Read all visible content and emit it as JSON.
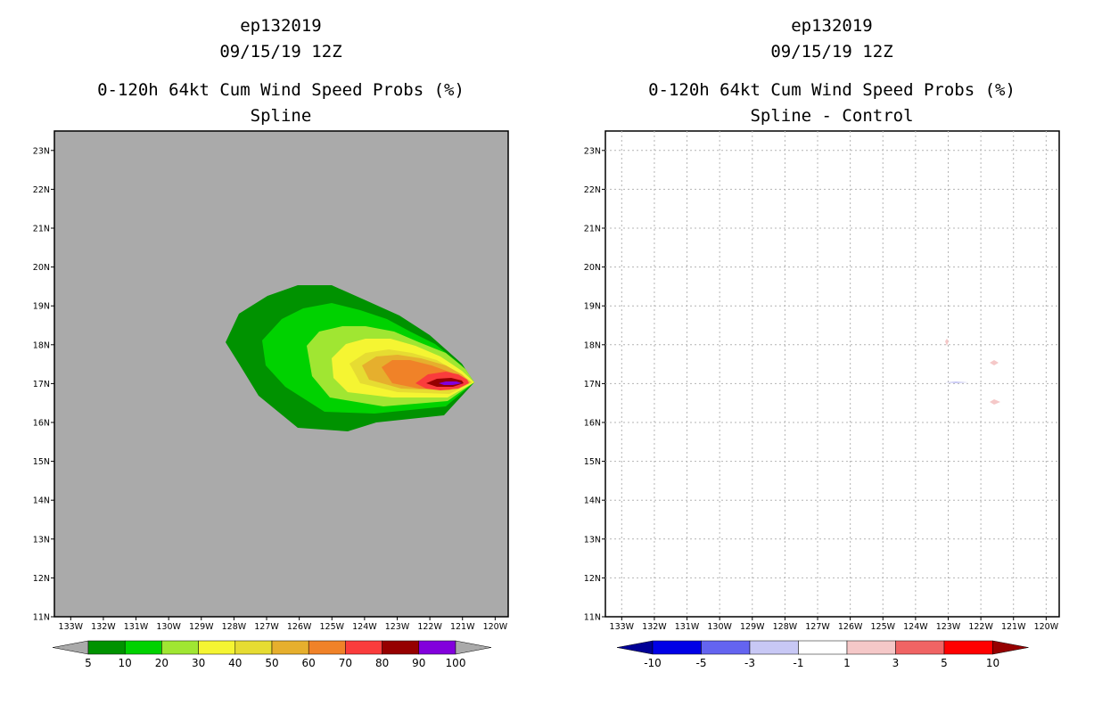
{
  "left": {
    "storm_id": "ep132019",
    "datetime": "09/15/19 12Z",
    "product": "0-120h 64kt Cum Wind Speed Probs (%)",
    "subtitle": "Spline",
    "background_color": "#aaaaaa",
    "lat_labels": [
      "23N",
      "22N",
      "21N",
      "20N",
      "19N",
      "18N",
      "17N",
      "16N",
      "15N",
      "14N",
      "13N",
      "12N",
      "11N"
    ],
    "lon_labels": [
      "133W",
      "132W",
      "131W",
      "130W",
      "129W",
      "128W",
      "127W",
      "126W",
      "125W",
      "124W",
      "123W",
      "122W",
      "121W",
      "120W"
    ],
    "colorbar": {
      "labels": [
        "5",
        "10",
        "20",
        "30",
        "40",
        "50",
        "60",
        "70",
        "80",
        "90",
        "100"
      ],
      "colors": [
        "#009200",
        "#00d200",
        "#a0e632",
        "#f5f532",
        "#e6dc32",
        "#e6af2d",
        "#f08228",
        "#fa3c3c",
        "#960000",
        "#8200dc"
      ],
      "end_colors": [
        "#aaaaaa",
        "#aaaaaa"
      ]
    }
  },
  "right": {
    "storm_id": "ep132019",
    "datetime": "09/15/19 12Z",
    "product": "0-120h 64kt Cum Wind Speed Probs (%)",
    "subtitle": "Spline - Control",
    "background_color": "#ffffff",
    "lat_labels": [
      "23N",
      "22N",
      "21N",
      "20N",
      "19N",
      "18N",
      "17N",
      "16N",
      "15N",
      "14N",
      "13N",
      "12N",
      "11N"
    ],
    "lon_labels": [
      "133W",
      "132W",
      "131W",
      "130W",
      "129W",
      "128W",
      "127W",
      "126W",
      "125W",
      "124W",
      "123W",
      "122W",
      "121W",
      "120W"
    ],
    "colorbar": {
      "labels": [
        "-10",
        "-5",
        "-3",
        "-1",
        "1",
        "3",
        "5",
        "10"
      ],
      "colors": [
        "#0000e6",
        "#6464f0",
        "#c8c8f5",
        "#ffffff",
        "#f5c8c8",
        "#f06464",
        "#ff0000"
      ],
      "end_colors": [
        "#000096",
        "#960000"
      ]
    }
  }
}
